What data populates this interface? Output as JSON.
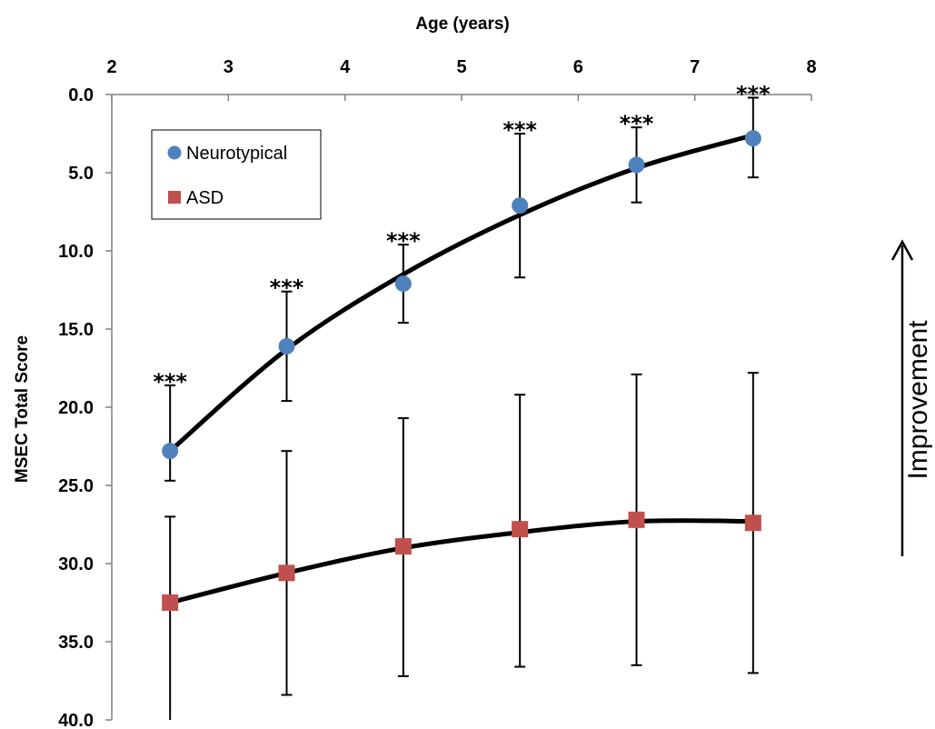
{
  "chart_data": {
    "type": "scatter",
    "title": "",
    "xlabel": "Age (years)",
    "ylabel": "MSEC Total Score",
    "x_axis_position": "top",
    "y_axis_inverted": true,
    "xlim": [
      2,
      8
    ],
    "ylim": [
      0,
      40
    ],
    "x_ticks": [
      "2",
      "3",
      "4",
      "5",
      "6",
      "7",
      "8"
    ],
    "y_ticks": [
      "0.0",
      "5.0",
      "10.0",
      "15.0",
      "20.0",
      "25.0",
      "30.0",
      "35.0",
      "40.0"
    ],
    "grid": false,
    "legend_placement": "top-left",
    "series": [
      {
        "name": "Neurotypical",
        "color": "#4f81bd",
        "marker": "circle",
        "x": [
          2.5,
          3.5,
          4.5,
          5.5,
          6.5,
          7.5
        ],
        "y": [
          22.8,
          16.1,
          12.1,
          7.1,
          4.5,
          2.8
        ],
        "error_low": [
          24.7,
          19.6,
          14.6,
          11.7,
          6.9,
          5.3
        ],
        "error_high": [
          18.6,
          12.6,
          9.6,
          2.5,
          2.1,
          0.2
        ],
        "trend": [
          22.8,
          16.3,
          11.5,
          7.7,
          4.7,
          2.6
        ]
      },
      {
        "name": "ASD",
        "color": "#c0504d",
        "marker": "square",
        "x": [
          2.5,
          3.5,
          4.5,
          5.5,
          6.5,
          7.5
        ],
        "y": [
          32.5,
          30.6,
          28.9,
          27.8,
          27.2,
          27.4
        ],
        "error_low": [
          40.0,
          38.4,
          37.2,
          36.6,
          36.5,
          37.0
        ],
        "error_high": [
          27.0,
          22.8,
          20.7,
          19.2,
          17.9,
          17.8
        ],
        "trend": [
          32.5,
          30.6,
          29.0,
          28.0,
          27.3,
          27.3
        ]
      }
    ],
    "annotations": {
      "significance_label": "***",
      "significance_x": [
        2.5,
        3.5,
        4.5,
        5.5,
        6.5,
        7.5
      ]
    },
    "side_label": "Improvement"
  }
}
